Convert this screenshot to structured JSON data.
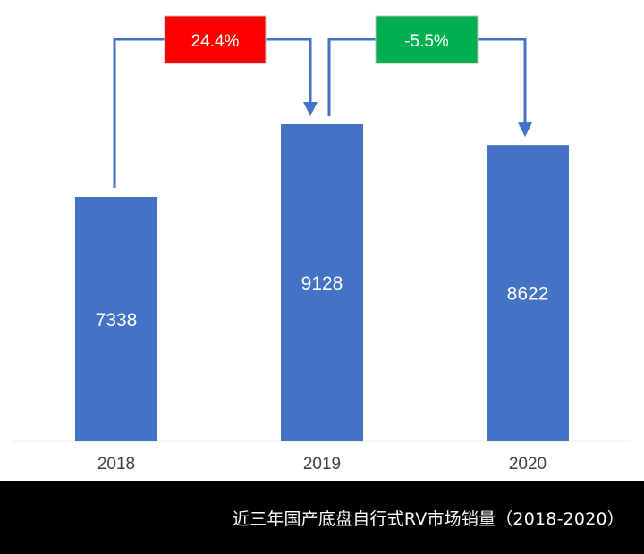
{
  "chart_data": {
    "type": "bar",
    "title": "近三年国产底盘自行式RV市场销量（2018-2020）",
    "xlabel": "",
    "ylabel": "",
    "categories": [
      "2018",
      "2019",
      "2020"
    ],
    "values": [
      7338,
      9128,
      8622
    ],
    "value_labels": [
      "7338",
      "9128",
      "8622"
    ],
    "grid": false,
    "legend": null,
    "bar_color": "#4472C4",
    "annotations": [
      {
        "from": "2018",
        "to": "2019",
        "label": "24.4%",
        "color": "#FF0000"
      },
      {
        "from": "2019",
        "to": "2020",
        "label": "-5.5%",
        "color": "#00B050"
      }
    ]
  },
  "footer": {
    "title": "近三年国产底盘自行式RV市场销量（2018-2020）"
  },
  "colors": {
    "bar": "#4472C4",
    "connector": "#4472C4",
    "increase": "#FF0000",
    "decrease": "#00B050",
    "axis": "#D9D9D9",
    "footer_bg": "#000000"
  }
}
